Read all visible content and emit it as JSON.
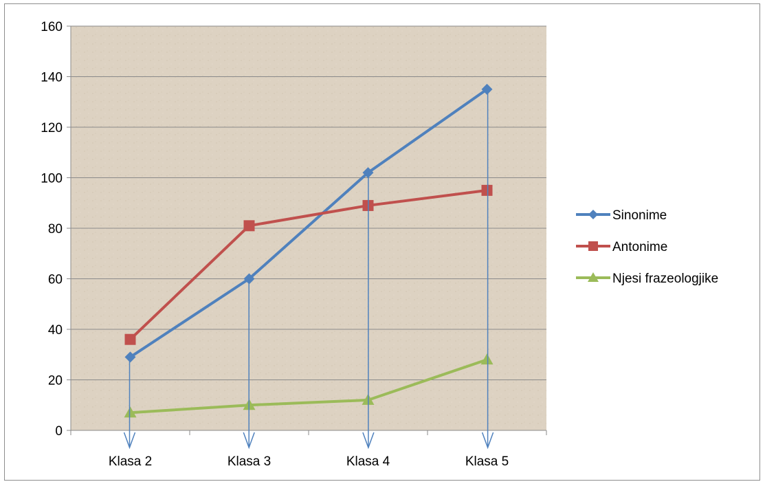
{
  "chart_data": {
    "type": "line",
    "categories": [
      "Klasa 2",
      "Klasa 3",
      "Klasa 4",
      "Klasa 5"
    ],
    "series": [
      {
        "name": "Sinonime",
        "values": [
          29,
          60,
          102,
          135
        ],
        "color": "#4f81bd",
        "marker": "diamond"
      },
      {
        "name": "Antonime",
        "values": [
          36,
          81,
          89,
          95
        ],
        "color": "#c0504d",
        "marker": "square"
      },
      {
        "name": "Njesi frazeologjike",
        "values": [
          7,
          10,
          12,
          28
        ],
        "color": "#9bbb59",
        "marker": "triangle"
      }
    ],
    "ylim": [
      0,
      160
    ],
    "yticks": [
      0,
      20,
      40,
      60,
      80,
      100,
      120,
      140,
      160
    ],
    "grid": true,
    "legend_position": "right",
    "plot_background": "#ddd2c2",
    "annotation_arrow_color": "#4f81bd",
    "title": "",
    "xlabel": "",
    "ylabel": ""
  }
}
